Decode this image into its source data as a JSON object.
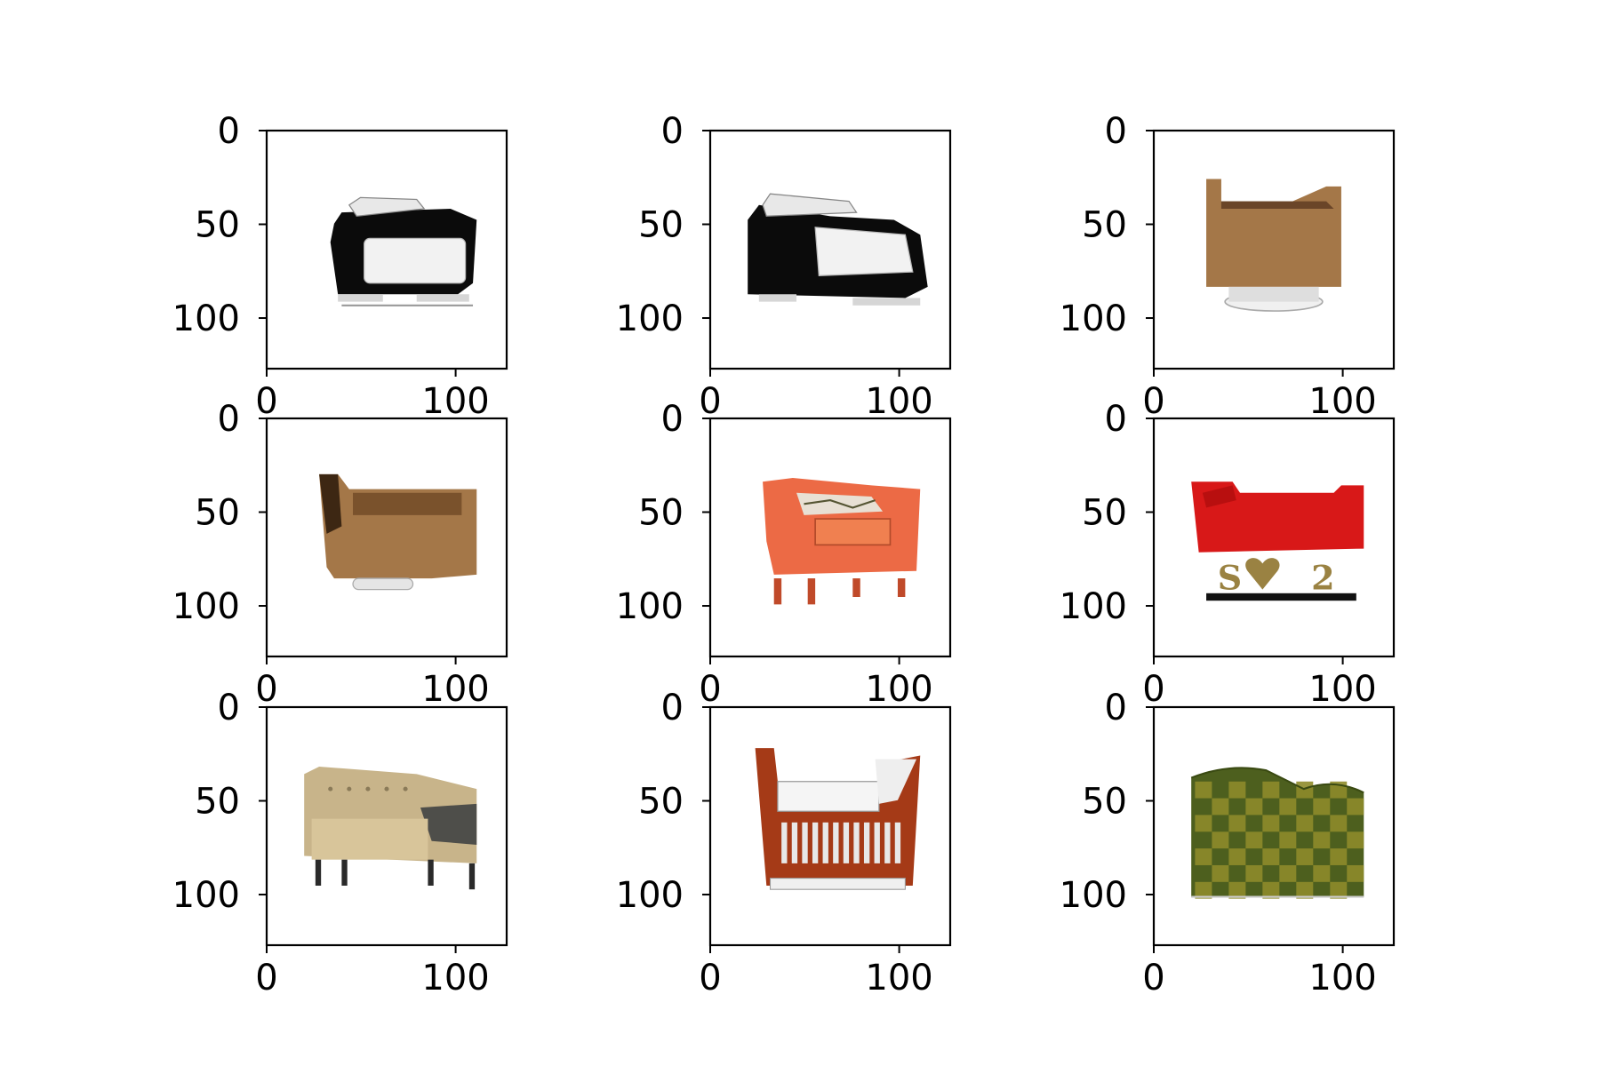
{
  "chart_data": {
    "type": "image-grid",
    "rows": 3,
    "cols": 3,
    "xlim": [
      0,
      127
    ],
    "ylim": [
      127,
      0
    ],
    "xticks": [
      0,
      100
    ],
    "yticks": [
      0,
      50,
      100
    ],
    "panels": [
      {
        "image": "black-armchair-white-cushion"
      },
      {
        "image": "black-armchair-white-cushion-rotated"
      },
      {
        "image": "brown-armchair-back-view"
      },
      {
        "image": "brown-armchair-side-view"
      },
      {
        "image": "orange-armchair"
      },
      {
        "image": "red-loveseat-on-letter-base"
      },
      {
        "image": "beige-tufted-sofa"
      },
      {
        "image": "red-wood-slatted-armchair"
      },
      {
        "image": "green-checkered-armchair"
      }
    ]
  },
  "colors": {
    "black": "#0b0b0b",
    "white": "#f2f2f2",
    "brown": "#a47748",
    "orange": "#ec6a45",
    "red": "#d81818",
    "beige": "#c8b48a",
    "wood": "#a53a17",
    "green_dark": "#4d5f1e",
    "green_light": "#8e8b2a"
  }
}
